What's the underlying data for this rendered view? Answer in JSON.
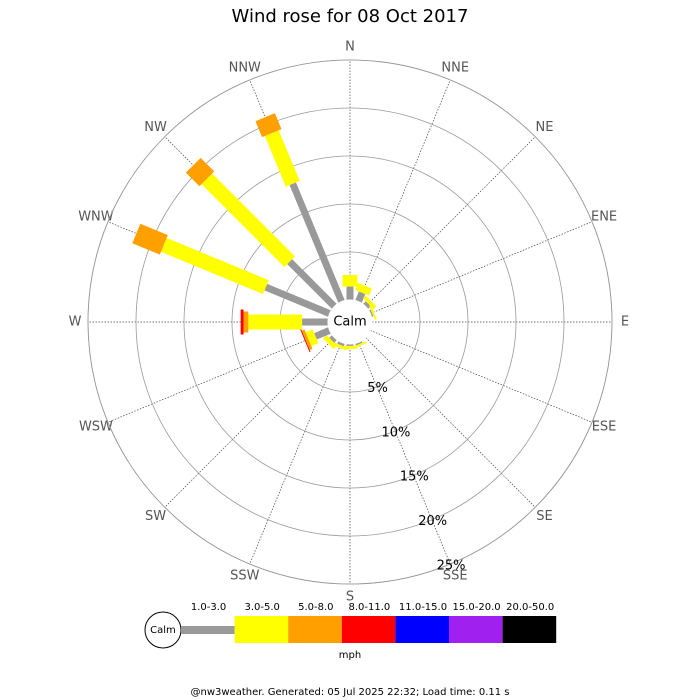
{
  "chart_data": {
    "type": "wind_rose",
    "title": "Wind rose for 08 Oct 2017",
    "directions": [
      "N",
      "NNE",
      "NE",
      "ENE",
      "E",
      "ESE",
      "SE",
      "SSE",
      "S",
      "SSW",
      "SW",
      "WSW",
      "W",
      "WNW",
      "NW",
      "NNW"
    ],
    "calm_label": "Calm",
    "rlim": [
      0,
      25
    ],
    "rticks": [
      {
        "value": 5,
        "label": "5%"
      },
      {
        "value": 10,
        "label": "10%"
      },
      {
        "value": 15,
        "label": "15%"
      },
      {
        "value": 20,
        "label": "20%"
      },
      {
        "value": 25,
        "label": "25%"
      }
    ],
    "unit": "mph",
    "series": [
      {
        "name": "1.0-3.0",
        "color": "#999999",
        "values": [
          1.4,
          1.0,
          0.4,
          0.2,
          0,
          0,
          0,
          0.2,
          0.2,
          0.3,
          0.4,
          1.6,
          2.7,
          7.2,
          6.6,
          13.3
        ]
      },
      {
        "name": "3.0-5.0",
        "color": "#ffff00",
        "values": [
          1.2,
          0.8,
          0.4,
          0.2,
          0,
          0,
          0,
          0.2,
          0.3,
          0.3,
          0.5,
          0.8,
          5.6,
          11.5,
          12.2,
          5.7
        ]
      },
      {
        "name": "5.0-8.0",
        "color": "#ffa000",
        "values": [
          0,
          0,
          0,
          0,
          0,
          0,
          0,
          0,
          0,
          0,
          0,
          0.3,
          0.5,
          3.1,
          2.0,
          1.8
        ]
      },
      {
        "name": "8.0-11.0",
        "color": "#ff0000",
        "values": [
          0,
          0,
          0,
          0,
          0,
          0,
          0,
          0,
          0,
          0,
          0,
          0.1,
          0.3,
          0,
          0,
          0
        ]
      },
      {
        "name": "11.0-15.0",
        "color": "#0000ff",
        "values": [
          0,
          0,
          0,
          0,
          0,
          0,
          0,
          0,
          0,
          0,
          0,
          0,
          0,
          0,
          0,
          0
        ]
      },
      {
        "name": "15.0-20.0",
        "color": "#a020f0",
        "values": [
          0,
          0,
          0,
          0,
          0,
          0,
          0,
          0,
          0,
          0,
          0,
          0,
          0,
          0,
          0,
          0
        ]
      },
      {
        "name": "20.0-50.0",
        "color": "#000000",
        "values": [
          0,
          0,
          0,
          0,
          0,
          0,
          0,
          0,
          0,
          0,
          0,
          0,
          0,
          0,
          0,
          0
        ]
      }
    ],
    "footer": "@nw3weather.  Generated: 05 Jul 2025 22:32; Load time: 0.11 s"
  }
}
